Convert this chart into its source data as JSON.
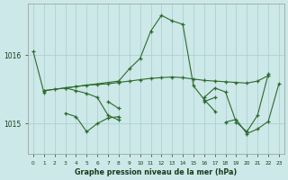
{
  "title": "Graphe pression niveau de la mer (hPa)",
  "bg_color": "#cce8e8",
  "grid_color": "#aacccc",
  "line_color": "#2d6b2d",
  "xlabel_color": "#1a3a1a",
  "yticks": [
    1015,
    1016
  ],
  "ylim": [
    1014.55,
    1016.75
  ],
  "xlim": [
    -0.5,
    23.5
  ],
  "x_labels": [
    "0",
    "1",
    "2",
    "3",
    "4",
    "5",
    "6",
    "7",
    "8",
    "9",
    "10",
    "11",
    "12",
    "13",
    "14",
    "15",
    "16",
    "17",
    "18",
    "19",
    "20",
    "21",
    "22",
    "23"
  ],
  "series": [
    {
      "x": [
        0,
        1
      ],
      "y": [
        1016.05,
        1015.45
      ]
    },
    {
      "x": [
        1,
        2,
        3,
        4,
        5,
        6,
        7,
        8,
        9,
        10,
        11,
        12,
        13,
        14,
        15,
        16,
        17,
        18,
        19,
        20,
        21,
        22
      ],
      "y": [
        1015.48,
        1015.5,
        1015.52,
        1015.54,
        1015.56,
        1015.57,
        1015.58,
        1015.6,
        1015.62,
        1015.64,
        1015.66,
        1015.67,
        1015.68,
        1015.67,
        1015.65,
        1015.63,
        1015.62,
        1015.61,
        1015.6,
        1015.59,
        1015.62,
        1015.7
      ]
    },
    {
      "x": [
        1,
        8,
        9,
        10,
        11,
        12,
        13,
        14,
        15,
        16,
        17
      ],
      "y": [
        1015.48,
        1015.62,
        1015.8,
        1015.95,
        1016.35,
        1016.58,
        1016.5,
        1016.45,
        1015.55,
        1015.35,
        1015.18
      ]
    },
    {
      "x": [
        3,
        4,
        5,
        6,
        7,
        8
      ],
      "y": [
        1015.52,
        1015.48,
        1015.44,
        1015.38,
        1015.12,
        1015.05
      ]
    },
    {
      "x": [
        3,
        4,
        5,
        6,
        7,
        8
      ],
      "y": [
        1015.15,
        1015.1,
        1014.88,
        1015.0,
        1015.08,
        1015.1
      ]
    },
    {
      "x": [
        7,
        8
      ],
      "y": [
        1015.32,
        1015.22
      ]
    },
    {
      "x": [
        16,
        17,
        18,
        19,
        20,
        21,
        22
      ],
      "y": [
        1015.38,
        1015.52,
        1015.46,
        1015.02,
        1014.88,
        1015.12,
        1015.72
      ]
    },
    {
      "x": [
        16,
        17
      ],
      "y": [
        1015.32,
        1015.38
      ]
    },
    {
      "x": [
        18,
        19,
        20,
        21,
        22,
        23
      ],
      "y": [
        1015.02,
        1015.06,
        1014.85,
        1014.92,
        1015.03,
        1015.58
      ]
    }
  ]
}
